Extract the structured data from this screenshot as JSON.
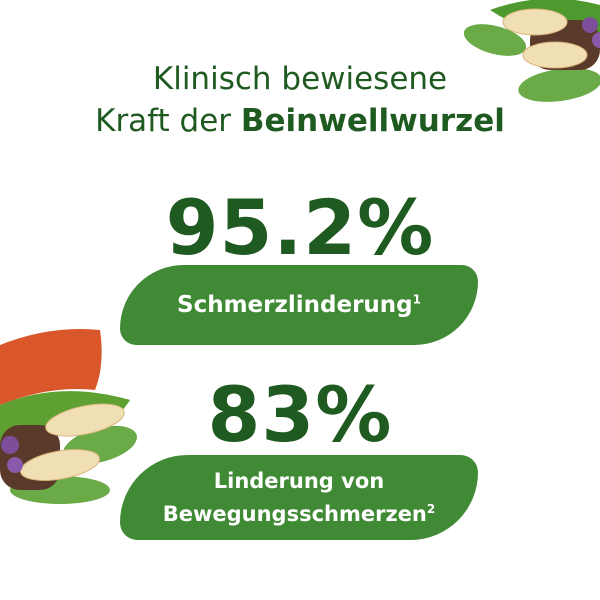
{
  "headline": {
    "line1": "Klinisch bewiesene",
    "line2_regular": "Kraft der ",
    "line2_bold": "Beinwellwurzel"
  },
  "stats": [
    {
      "value": "95.2%",
      "label_line1": "Schmerzlinderung",
      "label_line2": "",
      "footnote": "1"
    },
    {
      "value": "83%",
      "label_line1": "Linderung von",
      "label_line2": "Bewegungsschmerzen",
      "footnote": "2"
    }
  ],
  "colors": {
    "text_green": "#1f5a20",
    "pill_green": "#408a35",
    "accent_orange": "#d9572a"
  }
}
